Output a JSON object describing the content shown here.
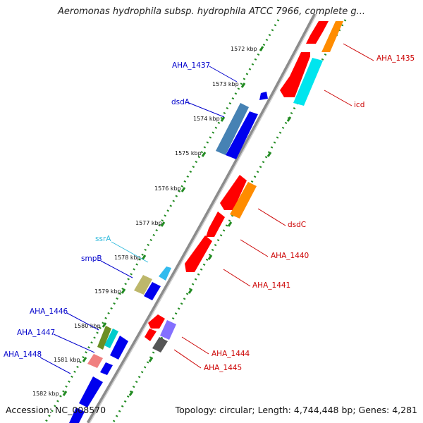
{
  "title": "Aeromonas hydrophila subsp. hydrophila ATCC 7966, complete g...",
  "footer": {
    "accession": "Accession: NC_008570",
    "stats": "Topology: circular; Length: 4,744,448 bp; Genes: 4,281"
  },
  "colors": {
    "forward_label": "#0000cc",
    "reverse_label": "#cc0000",
    "ssra_label": "#33bbdd",
    "backbone": "#8c8c8c",
    "tick_track": "#228b22"
  },
  "scale_ticks": [
    "1572 kbp",
    "1573 kbp",
    "1574 kbp",
    "1575 kbp",
    "1576 kbp",
    "1577 kbp",
    "1578 kbp",
    "1579 kbp",
    "1580 kbp",
    "1581 kbp",
    "1582 kbp"
  ],
  "forward_labels": [
    "AHA_1437",
    "dsdA",
    "ssrA",
    "smpB",
    "AHA_1446",
    "AHA_1447",
    "AHA_1448"
  ],
  "reverse_labels": [
    "AHA_1435",
    "icd",
    "dsdC",
    "AHA_1440",
    "AHA_1441",
    "AHA_1444",
    "AHA_1445"
  ]
}
